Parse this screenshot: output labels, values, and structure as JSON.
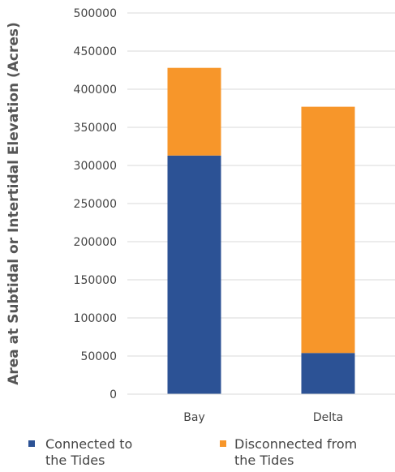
{
  "chart_data": {
    "type": "bar",
    "stacked": true,
    "categories": [
      "Bay",
      "Delta"
    ],
    "series": [
      {
        "name": "Connected to the Tides",
        "values": [
          313000,
          54000
        ],
        "color": "#2c5295"
      },
      {
        "name": "Disconnected from the Tides",
        "values": [
          115000,
          323000
        ],
        "color": "#f7962a"
      }
    ],
    "ylabel": "Area at Subtidal or Intertidal Elevation (Acres)",
    "xlabel": "",
    "ylim": [
      0,
      500000
    ],
    "yticks": [
      "0",
      "50000",
      "100000",
      "150000",
      "200000",
      "250000",
      "300000",
      "350000",
      "400000",
      "450000",
      "500000"
    ],
    "grid": true,
    "legend": {
      "position": "bottom",
      "entries": [
        {
          "line1": "Connected to",
          "line2": "the Tides"
        },
        {
          "line1": "Disconnected from",
          "line2": "the Tides"
        }
      ]
    }
  }
}
